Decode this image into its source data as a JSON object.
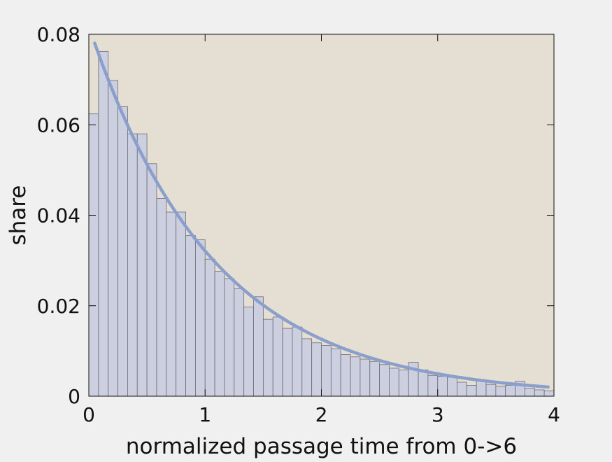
{
  "chart_data": {
    "type": "bar",
    "title": "",
    "xlabel": "normalized passage time from 0->6",
    "ylabel": "share",
    "xlim": [
      0,
      4
    ],
    "ylim": [
      0,
      0.08
    ],
    "x_ticks": [
      0,
      1,
      2,
      3,
      4
    ],
    "x_tick_labels": [
      "0",
      "1",
      "2",
      "3",
      "4"
    ],
    "y_ticks": [
      0,
      0.02,
      0.04,
      0.06,
      0.08
    ],
    "y_tick_labels": [
      "0",
      "0.02",
      "0.04",
      "0.06",
      "0.08"
    ],
    "grid": false,
    "bin_width": 0.0833,
    "bin_starts": [
      0,
      0.0833,
      0.1667,
      0.25,
      0.3333,
      0.4167,
      0.5,
      0.5833,
      0.6667,
      0.75,
      0.8333,
      0.9167,
      1.0,
      1.0833,
      1.1667,
      1.25,
      1.3333,
      1.4167,
      1.5,
      1.5833,
      1.6667,
      1.75,
      1.8333,
      1.9167,
      2.0,
      2.0833,
      2.1667,
      2.25,
      2.3333,
      2.4167,
      2.5,
      2.5833,
      2.6667,
      2.75,
      2.8333,
      2.9167,
      3.0,
      3.0833,
      3.1667,
      3.25,
      3.3333,
      3.4167,
      3.5,
      3.5833,
      3.6667,
      3.75,
      3.8333,
      3.9167
    ],
    "values": [
      0.0624,
      0.0762,
      0.0698,
      0.064,
      0.058,
      0.058,
      0.0514,
      0.0437,
      0.0407,
      0.0407,
      0.0355,
      0.0346,
      0.0303,
      0.0276,
      0.026,
      0.0238,
      0.0197,
      0.022,
      0.017,
      0.0175,
      0.015,
      0.0153,
      0.0127,
      0.0118,
      0.0112,
      0.0105,
      0.0092,
      0.0087,
      0.0082,
      0.0077,
      0.007,
      0.0062,
      0.0058,
      0.0075,
      0.0058,
      0.0046,
      0.0044,
      0.0042,
      0.0031,
      0.0024,
      0.0036,
      0.0026,
      0.0022,
      0.0024,
      0.0033,
      0.0018,
      0.0014,
      0.0012
    ],
    "fit_curve": {
      "type": "exponential",
      "amplitude": 0.0818,
      "rate": 0.935,
      "x_range": [
        0.05,
        3.95
      ]
    },
    "colors": {
      "plot_background": "#e5ded3",
      "bar_fill": "#cbcfdf",
      "bar_stroke": "#6b6b72",
      "fit_line": "#8b9fcc",
      "figure_background": "#f0f0f0"
    }
  }
}
